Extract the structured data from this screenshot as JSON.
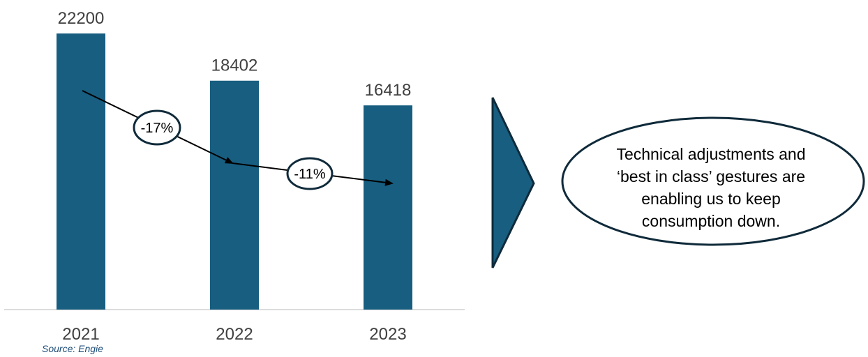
{
  "chart_data": {
    "type": "bar",
    "categories": [
      "2021",
      "2022",
      "2023"
    ],
    "values": [
      22200,
      18402,
      16418
    ],
    "ylim": [
      0,
      22200
    ],
    "grid": false,
    "changes": [
      {
        "from": "2021",
        "to": "2022",
        "label": "-17%"
      },
      {
        "from": "2022",
        "to": "2023",
        "label": "-11%"
      }
    ]
  },
  "colors": {
    "bar": "#185e80",
    "outline": "#0f2a3a",
    "axis": "#d0d0d0"
  },
  "source": "Source: Engie",
  "callout": {
    "lines": [
      "Technical adjustments and",
      "‘best in class’ gestures are",
      "enabling us to keep",
      "consumption down."
    ]
  }
}
